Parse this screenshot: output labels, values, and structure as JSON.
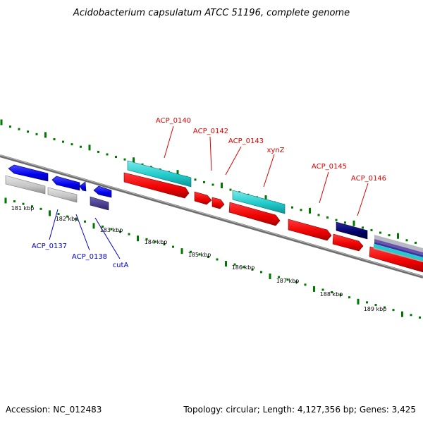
{
  "title": "Acidobacterium capsulatum ATCC 51196, complete genome",
  "accession": "Accession: NC_012483",
  "topology": "Topology: circular; Length: 4,127,356 bp; Genes: 3,425",
  "scale_labels": [
    "181 kbp",
    "182 kbp",
    "183 kbp",
    "184 kbp",
    "185 kbp",
    "186 kbp",
    "187 kbp",
    "188 kbp",
    "189 kbp"
  ],
  "gene_labels_forward": [
    "ACP_0140",
    "ACP_0142",
    "ACP_0143",
    "xynZ",
    "ACP_0145",
    "ACP_0146"
  ],
  "gene_labels_reverse": [
    "ACP_0137",
    "ACP_0138",
    "cutA"
  ],
  "colors": {
    "forward_cds": "#ff0000",
    "forward_label": "#dd0000",
    "reverse_cds": "#0000ee",
    "reverse_label": "#0000cc",
    "rna": "#1ecbcb",
    "gene_gray": "#c8c8c8",
    "slate": "#483d8b",
    "navy": "#000066",
    "backbone": "#808080",
    "ticks": "#007700"
  }
}
